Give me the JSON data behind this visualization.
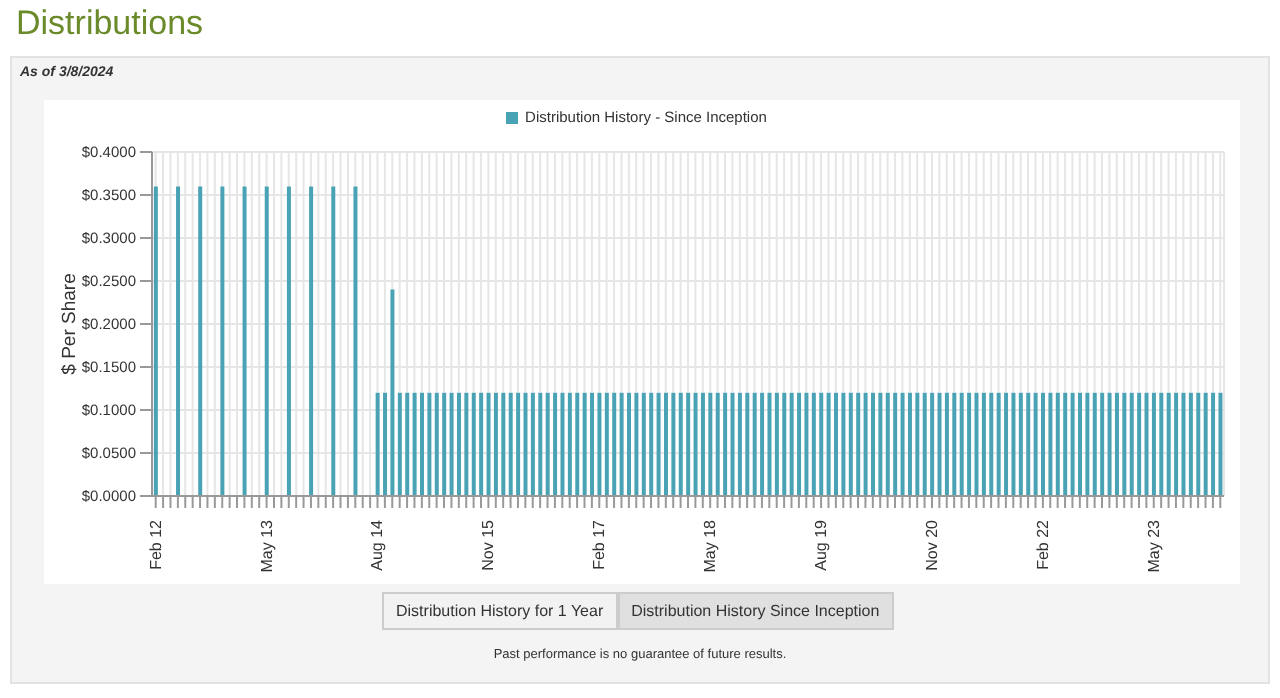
{
  "chart_data": {
    "type": "bar",
    "title": "Distributions",
    "annotations": [
      "As of 3/8/2024",
      "Distribution History for 1 Year",
      "Distribution History Since Inception",
      "Past performance is no guarantee of future results."
    ],
    "ylabel": "$ Per Share",
    "categories": [
      "Feb 12",
      null,
      null,
      null,
      null,
      null,
      null,
      null,
      null,
      null,
      null,
      null,
      null,
      null,
      null,
      "May 13",
      null,
      null,
      null,
      null,
      null,
      null,
      null,
      null,
      null,
      null,
      null,
      null,
      null,
      null,
      "Aug 14",
      null,
      null,
      null,
      null,
      null,
      null,
      null,
      null,
      null,
      null,
      null,
      null,
      null,
      null,
      "Nov 15",
      null,
      null,
      null,
      null,
      null,
      null,
      null,
      null,
      null,
      null,
      null,
      null,
      null,
      null,
      "Feb 17",
      null,
      null,
      null,
      null,
      null,
      null,
      null,
      null,
      null,
      null,
      null,
      null,
      null,
      null,
      "May 18",
      null,
      null,
      null,
      null,
      null,
      null,
      null,
      null,
      null,
      null,
      null,
      null,
      null,
      null,
      "Aug 19",
      null,
      null,
      null,
      null,
      null,
      null,
      null,
      null,
      null,
      null,
      null,
      null,
      null,
      null,
      "Nov 20",
      null,
      null,
      null,
      null,
      null,
      null,
      null,
      null,
      null,
      null,
      null,
      null,
      null,
      null,
      "Feb 22",
      null,
      null,
      null,
      null,
      null,
      null,
      null,
      null,
      null,
      null,
      null,
      null,
      null,
      null,
      "May 23",
      null,
      null,
      null,
      null,
      null,
      null,
      null,
      null,
      null
    ],
    "series": [
      {
        "name": "Distribution History - Since Inception",
        "color": "#4aa3b5",
        "values": [
          0.36,
          null,
          null,
          0.36,
          null,
          null,
          0.36,
          null,
          null,
          0.36,
          null,
          null,
          0.36,
          null,
          null,
          0.36,
          null,
          null,
          0.36,
          null,
          null,
          0.36,
          null,
          null,
          0.36,
          null,
          null,
          0.36,
          null,
          null,
          0.12,
          0.12,
          0.24,
          0.12,
          0.12,
          0.12,
          0.12,
          0.12,
          0.12,
          0.12,
          0.12,
          0.12,
          0.12,
          0.12,
          0.12,
          0.12,
          0.12,
          0.12,
          0.12,
          0.12,
          0.12,
          0.12,
          0.12,
          0.12,
          0.12,
          0.12,
          0.12,
          0.12,
          0.12,
          0.12,
          0.12,
          0.12,
          0.12,
          0.12,
          0.12,
          0.12,
          0.12,
          0.12,
          0.12,
          0.12,
          0.12,
          0.12,
          0.12,
          0.12,
          0.12,
          0.12,
          0.12,
          0.12,
          0.12,
          0.12,
          0.12,
          0.12,
          0.12,
          0.12,
          0.12,
          0.12,
          0.12,
          0.12,
          0.12,
          0.12,
          0.12,
          0.12,
          0.12,
          0.12,
          0.12,
          0.12,
          0.12,
          0.12,
          0.12,
          0.12,
          0.12,
          0.12,
          0.12,
          0.12,
          0.12,
          0.12,
          0.12,
          0.12,
          0.12,
          0.12,
          0.12,
          0.12,
          0.12,
          0.12,
          0.12,
          0.12,
          0.12,
          0.12,
          0.12,
          0.12,
          0.12,
          0.12,
          0.12,
          0.12,
          0.12,
          0.12,
          0.12,
          0.12,
          0.12,
          0.12,
          0.12,
          0.12,
          0.12,
          0.12,
          0.12,
          0.12,
          0.12,
          0.12,
          0.12,
          0.12,
          0.12,
          0.12,
          0.12,
          0.12,
          0.12
        ]
      }
    ],
    "ylim": [
      0,
      0.4
    ],
    "yticks": [
      {
        "value": 0,
        "label": "$0.0000"
      },
      {
        "value": 0.05,
        "label": "$0.0500"
      },
      {
        "value": 0.1,
        "label": "$0.1000"
      },
      {
        "value": 0.15,
        "label": "$0.1500"
      },
      {
        "value": 0.2,
        "label": "$0.2000"
      },
      {
        "value": 0.25,
        "label": "$0.2500"
      },
      {
        "value": 0.3,
        "label": "$0.3000"
      },
      {
        "value": 0.35,
        "label": "$0.3500"
      },
      {
        "value": 0.4,
        "label": "$0.4000"
      }
    ],
    "grid": true,
    "legend": "top"
  }
}
